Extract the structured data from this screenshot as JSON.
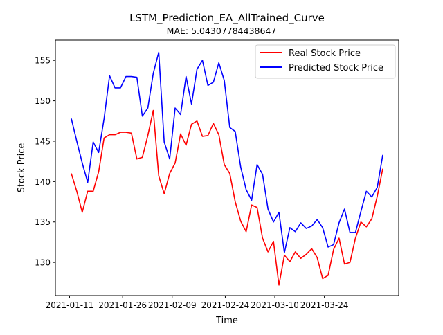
{
  "chart_data": {
    "type": "line",
    "title": "LSTM_Prediction_EA_AllTrained_Curve",
    "subtitle": "MAE: 5.04307784438647",
    "xlabel": "Time",
    "ylabel": "Stock Price",
    "xlim": [
      "2021-01-07",
      "2021-04-14"
    ],
    "ylim": [
      125.9,
      157.5
    ],
    "x_ticks": [
      "2021-01-11",
      "2021-01-26",
      "2021-02-09",
      "2021-02-24",
      "2021-03-10",
      "2021-03-24"
    ],
    "y_ticks": [
      130,
      135,
      140,
      145,
      150,
      155
    ],
    "grid": false,
    "legend_position": "top-right",
    "series": [
      {
        "name": "Real Stock Price",
        "color": "#ff0000",
        "values": [
          141.0,
          138.8,
          136.2,
          138.8,
          138.8,
          141.2,
          145.4,
          145.8,
          145.8,
          146.1,
          146.1,
          146.0,
          142.8,
          143.0,
          145.7,
          148.8,
          140.7,
          138.5,
          141.0,
          142.3,
          145.9,
          144.5,
          147.1,
          147.5,
          145.6,
          145.7,
          147.2,
          145.8,
          142.1,
          141.0,
          137.5,
          135.1,
          133.8,
          137.1,
          136.8,
          133.0,
          131.3,
          132.6,
          127.2,
          130.9,
          130.1,
          131.3,
          130.5,
          131.0,
          131.7,
          130.6,
          128.0,
          128.4,
          131.6,
          133.0,
          129.8,
          130.0,
          133.0,
          135.0,
          134.4,
          135.4,
          138.2,
          141.6
        ]
      },
      {
        "name": "Predicted Stock Price",
        "color": "#0000ff",
        "values": [
          147.8,
          145.0,
          142.3,
          139.9,
          144.9,
          143.6,
          147.8,
          153.1,
          151.6,
          151.6,
          153.0,
          153.0,
          152.9,
          148.1,
          149.1,
          153.4,
          156.0,
          144.9,
          142.8,
          149.1,
          148.3,
          153.0,
          149.6,
          153.9,
          155.0,
          151.9,
          152.3,
          154.7,
          152.5,
          146.7,
          146.2,
          141.8,
          139.0,
          137.7,
          142.1,
          140.9,
          136.6,
          135.0,
          136.2,
          131.2,
          134.3,
          133.8,
          134.9,
          134.2,
          134.5,
          135.3,
          134.3,
          131.9,
          132.2,
          134.9,
          136.6,
          133.7,
          133.7,
          136.3,
          138.8,
          138.1,
          139.3,
          143.3
        ]
      }
    ]
  }
}
